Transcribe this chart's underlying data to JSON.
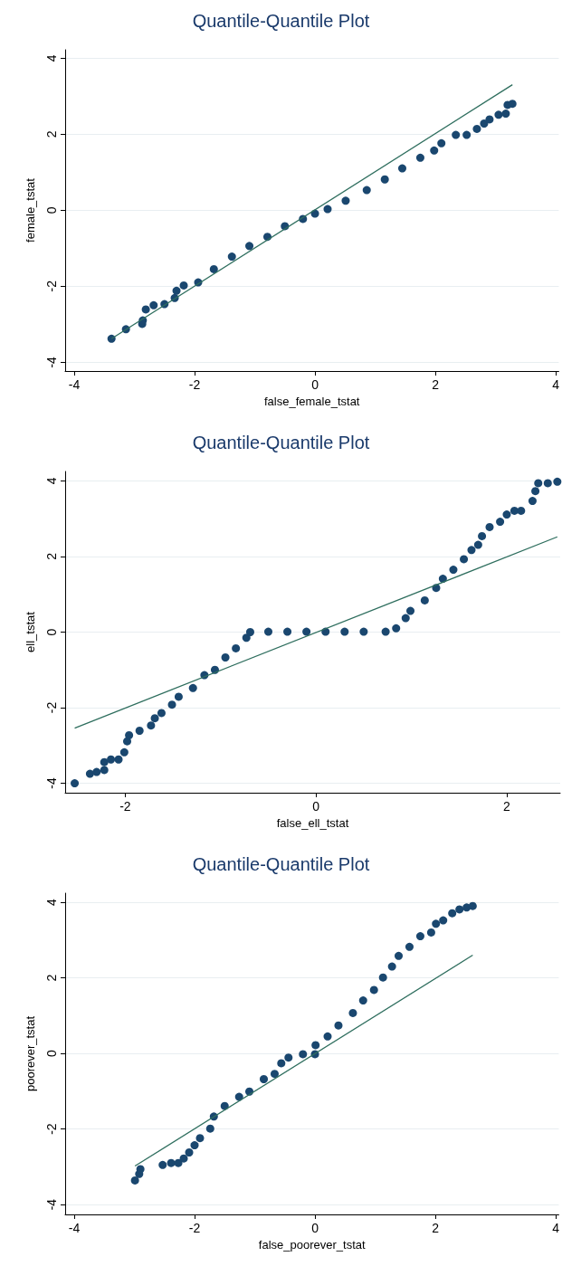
{
  "chart_data": [
    {
      "type": "scatter",
      "title": "Quantile-Quantile Plot",
      "xlabel": "false_female_tstat",
      "ylabel": "female_tstat",
      "xlim": [
        -4.15,
        4.05
      ],
      "ylim": [
        -4.23,
        4.22
      ],
      "xticks": [
        -4,
        -2,
        0,
        2,
        4
      ],
      "yticks": [
        -4,
        -2,
        0,
        2,
        4
      ],
      "grid": "y",
      "series": [
        {
          "color": "#1a476f",
          "marker": "circle",
          "x": [
            -3.38,
            -3.14,
            -2.87,
            -2.86,
            -2.81,
            -2.68,
            -2.5,
            -2.33,
            -2.3,
            -2.18,
            -1.94,
            -1.68,
            -1.38,
            -1.09,
            -0.79,
            -0.5,
            -0.2,
            0,
            0.21,
            0.51,
            0.86,
            1.16,
            1.45,
            1.75,
            1.98,
            2.1,
            2.34,
            2.52,
            2.69,
            2.81,
            2.9,
            3.05,
            3.17,
            3.2,
            3.28
          ],
          "values": [
            -3.38,
            -3.13,
            -2.99,
            -2.9,
            -2.61,
            -2.5,
            -2.47,
            -2.31,
            -2.12,
            -1.98,
            -1.9,
            -1.55,
            -1.22,
            -0.94,
            -0.7,
            -0.42,
            -0.23,
            -0.09,
            0.03,
            0.25,
            0.53,
            0.81,
            1.1,
            1.38,
            1.57,
            1.76,
            1.98,
            1.98,
            2.14,
            2.28,
            2.39,
            2.51,
            2.54,
            2.77,
            2.8
          ]
        },
        {
          "type": "line",
          "color": "#2e6e5e",
          "marker": "none",
          "line_style": "solid",
          "x": [
            -3.38,
            3.28
          ],
          "values": [
            -3.38,
            3.3
          ]
        }
      ]
    },
    {
      "type": "scatter",
      "title": "Quantile-Quantile Plot",
      "xlabel": "false_ell_tstat",
      "ylabel": "ell_tstat",
      "xlim": [
        -2.63,
        2.56
      ],
      "ylim": [
        -4.25,
        4.25
      ],
      "xticks": [
        -2,
        0,
        2
      ],
      "yticks": [
        -4,
        -2,
        0,
        2,
        4
      ],
      "grid": "y",
      "series": [
        {
          "color": "#1a476f",
          "marker": "circle",
          "x": [
            -2.53,
            -2.37,
            -2.3,
            -2.22,
            -2.22,
            -2.15,
            -2.07,
            -2.01,
            -1.98,
            -1.96,
            -1.85,
            -1.73,
            -1.69,
            -1.62,
            -1.51,
            -1.44,
            -1.29,
            -1.17,
            -1.06,
            -0.95,
            -0.84,
            -0.73,
            -0.69,
            -0.5,
            -0.3,
            -0.1,
            0.1,
            0.3,
            0.5,
            0.73,
            0.84,
            0.94,
            0.99,
            1.14,
            1.26,
            1.33,
            1.44,
            1.55,
            1.63,
            1.7,
            1.74,
            1.82,
            1.93,
            2,
            2.08,
            2.15,
            2.27,
            2.3,
            2.33,
            2.43,
            2.53
          ],
          "values": [
            -4,
            -3.75,
            -3.7,
            -3.65,
            -3.44,
            -3.37,
            -3.37,
            -3.18,
            -2.89,
            -2.73,
            -2.61,
            -2.47,
            -2.28,
            -2.14,
            -1.92,
            -1.71,
            -1.48,
            -1.14,
            -1,
            -0.67,
            -0.43,
            -0.15,
            0,
            0.01,
            0.01,
            0.01,
            0.01,
            0.01,
            0.01,
            0.01,
            0.1,
            0.37,
            0.56,
            0.84,
            1.17,
            1.41,
            1.65,
            1.93,
            2.17,
            2.31,
            2.54,
            2.78,
            2.92,
            3.11,
            3.21,
            3.21,
            3.47,
            3.73,
            3.94,
            3.94,
            3.98
          ]
        },
        {
          "type": "line",
          "color": "#2e6e5e",
          "marker": "none",
          "line_style": "solid",
          "x": [
            -2.53,
            2.53
          ],
          "values": [
            -2.54,
            2.52
          ]
        }
      ]
    },
    {
      "type": "scatter",
      "title": "Quantile-Quantile Plot",
      "xlabel": "false_poorever_tstat",
      "ylabel": "poorever_tstat",
      "xlim": [
        -4.15,
        4.05
      ],
      "ylim": [
        -4.26,
        4.24
      ],
      "xticks": [
        -4,
        -2,
        0,
        2,
        4
      ],
      "yticks": [
        -4,
        -2,
        0,
        2,
        4
      ],
      "grid": "y",
      "series": [
        {
          "color": "#1a476f",
          "marker": "circle",
          "x": [
            -2.99,
            -2.92,
            -2.9,
            -2.53,
            -2.39,
            -2.27,
            -2.18,
            -2.09,
            -2,
            -1.91,
            -1.74,
            -1.68,
            -1.5,
            -1.26,
            -1.09,
            -0.85,
            -0.67,
            -0.56,
            -0.44,
            -0.2,
            0,
            0.01,
            0.21,
            0.39,
            0.63,
            0.8,
            0.98,
            1.13,
            1.28,
            1.39,
            1.57,
            1.75,
            1.93,
            2.01,
            2.13,
            2.28,
            2.4,
            2.52,
            2.62
          ],
          "values": [
            -3.36,
            -3.19,
            -3.06,
            -2.95,
            -2.9,
            -2.9,
            -2.78,
            -2.62,
            -2.43,
            -2.24,
            -1.99,
            -1.67,
            -1.39,
            -1.15,
            -1.01,
            -0.68,
            -0.54,
            -0.26,
            -0.11,
            -0.02,
            -0.02,
            0.22,
            0.45,
            0.74,
            1.07,
            1.4,
            1.68,
            2.01,
            2.3,
            2.58,
            2.82,
            3.1,
            3.2,
            3.43,
            3.52,
            3.71,
            3.81,
            3.86,
            3.9
          ]
        },
        {
          "type": "line",
          "color": "#2e6e5e",
          "marker": "none",
          "line_style": "solid",
          "x": [
            -2.99,
            2.62
          ],
          "values": [
            -2.98,
            2.6
          ]
        }
      ]
    }
  ]
}
